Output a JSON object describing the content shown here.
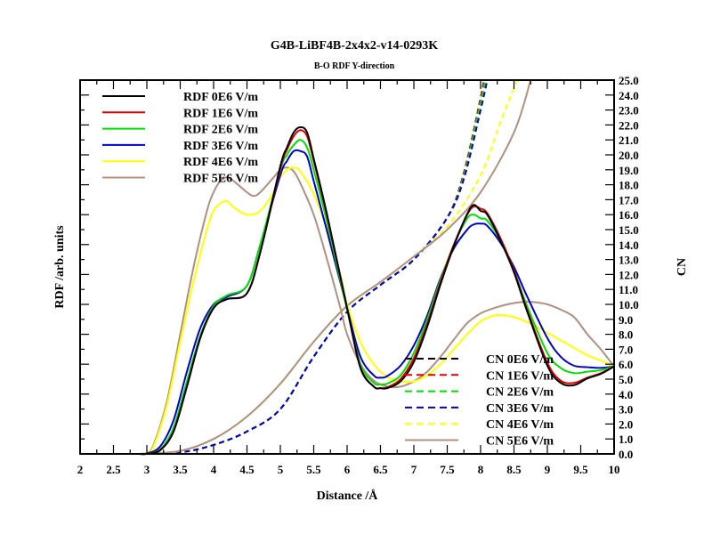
{
  "chart_data": {
    "type": "line",
    "title": "G4B-LiBF4B-2x4x2-v14-0293K",
    "subtitle": "B-O RDF Y-direction",
    "xlabel": "Distance /Å",
    "ylabel_left": "RDF /arb. units",
    "ylabel_right": "CN",
    "xlim": [
      2,
      10
    ],
    "ylim_right": [
      0,
      25
    ],
    "xticks": [
      2,
      2.5,
      3,
      3.5,
      4,
      4.5,
      5,
      5.5,
      6,
      6.5,
      7,
      7.5,
      8,
      8.5,
      9,
      9.5,
      10
    ],
    "yticks_right": [
      0.0,
      1.0,
      2.0,
      3.0,
      4.0,
      5.0,
      6.0,
      7.0,
      8.0,
      9.0,
      10.0,
      11.0,
      12.0,
      13.0,
      14.0,
      15.0,
      16.0,
      17.0,
      18.0,
      19.0,
      20.0,
      21.0,
      22.0,
      23.0,
      24.0,
      25.0
    ],
    "legend_rdf_placement": "top-left",
    "legend_cn_placement": "bottom-right",
    "rdf_series": [
      {
        "name": "RDF 0E6 V/m",
        "color": "#000000",
        "x": [
          2.9,
          3.0,
          3.2,
          3.4,
          3.6,
          3.8,
          4.0,
          4.2,
          4.5,
          4.7,
          5.0,
          5.1,
          5.2,
          5.3,
          5.4,
          5.5,
          5.7,
          6.0,
          6.2,
          6.4,
          6.5,
          6.6,
          6.8,
          7.0,
          7.2,
          7.4,
          7.6,
          7.8,
          7.9,
          8.0,
          8.1,
          8.3,
          8.5,
          8.7,
          9.0,
          9.2,
          9.4,
          9.6,
          9.8,
          10.0
        ],
        "y": [
          0.0,
          0.002,
          0.05,
          0.3,
          0.9,
          1.55,
          1.95,
          2.07,
          2.15,
          2.7,
          3.85,
          4.1,
          4.3,
          4.37,
          4.3,
          3.95,
          3.2,
          1.95,
          1.15,
          0.9,
          0.88,
          0.88,
          0.97,
          1.23,
          1.7,
          2.27,
          2.78,
          3.21,
          3.33,
          3.25,
          3.2,
          2.85,
          2.43,
          1.9,
          1.18,
          0.95,
          0.92,
          1.01,
          1.07,
          1.17
        ]
      },
      {
        "name": "RDF 1E6 V/m",
        "color": "#e00000",
        "x": [
          2.9,
          3.0,
          3.2,
          3.4,
          3.6,
          3.8,
          4.0,
          4.2,
          4.5,
          4.7,
          5.0,
          5.1,
          5.2,
          5.3,
          5.4,
          5.5,
          5.7,
          6.0,
          6.2,
          6.4,
          6.5,
          6.6,
          6.8,
          7.0,
          7.2,
          7.4,
          7.6,
          7.8,
          7.9,
          8.0,
          8.1,
          8.3,
          8.5,
          8.7,
          9.0,
          9.2,
          9.4,
          9.6,
          9.8,
          10.0
        ],
        "y": [
          0.0,
          0.002,
          0.05,
          0.3,
          0.9,
          1.55,
          1.95,
          2.07,
          2.15,
          2.7,
          3.82,
          4.07,
          4.25,
          4.33,
          4.25,
          3.92,
          3.18,
          1.95,
          1.16,
          0.9,
          0.88,
          0.89,
          1.0,
          1.28,
          1.74,
          2.3,
          2.8,
          3.2,
          3.31,
          3.28,
          3.22,
          2.88,
          2.45,
          1.92,
          1.22,
          0.98,
          0.95,
          1.02,
          1.08,
          1.17
        ]
      },
      {
        "name": "RDF 2E6 V/m",
        "color": "#00e000",
        "x": [
          2.9,
          3.0,
          3.2,
          3.4,
          3.6,
          3.8,
          4.0,
          4.2,
          4.5,
          4.7,
          5.0,
          5.1,
          5.2,
          5.3,
          5.4,
          5.5,
          5.7,
          6.0,
          6.2,
          6.4,
          6.5,
          6.6,
          6.8,
          7.0,
          7.2,
          7.4,
          7.6,
          7.8,
          7.9,
          8.0,
          8.1,
          8.3,
          8.5,
          8.7,
          9.0,
          9.2,
          9.4,
          9.6,
          9.8,
          10.0
        ],
        "y": [
          0.0,
          0.003,
          0.06,
          0.35,
          0.97,
          1.58,
          1.98,
          2.12,
          2.25,
          2.8,
          3.8,
          4.0,
          4.13,
          4.2,
          4.1,
          3.8,
          3.1,
          1.93,
          1.2,
          0.95,
          0.93,
          0.94,
          1.05,
          1.35,
          1.8,
          2.33,
          2.8,
          3.15,
          3.2,
          3.15,
          3.12,
          2.85,
          2.45,
          1.97,
          1.35,
          1.15,
          1.08,
          1.1,
          1.12,
          1.17
        ]
      },
      {
        "name": "RDF 3E6 V/m",
        "color": "#0000cc",
        "x": [
          2.9,
          3.0,
          3.2,
          3.4,
          3.6,
          3.8,
          4.0,
          4.2,
          4.5,
          4.7,
          5.0,
          5.1,
          5.2,
          5.3,
          5.4,
          5.5,
          5.7,
          6.0,
          6.2,
          6.4,
          6.5,
          6.6,
          6.8,
          7.0,
          7.2,
          7.4,
          7.6,
          7.8,
          7.9,
          8.0,
          8.1,
          8.3,
          8.5,
          8.7,
          9.0,
          9.2,
          9.4,
          9.6,
          9.8,
          10.0
        ],
        "y": [
          0.0,
          0.005,
          0.1,
          0.45,
          1.1,
          1.68,
          2.0,
          2.1,
          2.25,
          2.8,
          3.73,
          3.92,
          4.05,
          4.05,
          3.98,
          3.65,
          2.98,
          1.95,
          1.3,
          1.05,
          1.02,
          1.04,
          1.18,
          1.45,
          1.85,
          2.35,
          2.75,
          3.0,
          3.07,
          3.08,
          3.05,
          2.82,
          2.5,
          2.1,
          1.55,
          1.3,
          1.18,
          1.16,
          1.15,
          1.17
        ]
      },
      {
        "name": "RDF 4E6 V/m",
        "color": "#ffff00",
        "x": [
          2.9,
          3.0,
          3.1,
          3.3,
          3.5,
          3.7,
          3.9,
          4.0,
          4.1,
          4.2,
          4.3,
          4.5,
          4.7,
          4.9,
          5.0,
          5.1,
          5.2,
          5.3,
          5.5,
          5.7,
          5.9,
          6.0,
          6.2,
          6.4,
          6.6,
          6.8,
          7.0,
          7.2,
          7.4,
          7.6,
          7.8,
          8.0,
          8.2,
          8.4,
          8.6,
          8.8,
          9.0,
          9.2,
          9.4,
          9.6,
          9.8,
          10.0
        ],
        "y": [
          0.0,
          0.01,
          0.1,
          0.65,
          1.5,
          2.3,
          3.0,
          3.25,
          3.35,
          3.38,
          3.3,
          3.2,
          3.25,
          3.5,
          3.7,
          3.8,
          3.83,
          3.78,
          3.48,
          3.0,
          2.4,
          2.0,
          1.5,
          1.2,
          1.03,
          0.97,
          0.97,
          1.05,
          1.2,
          1.4,
          1.6,
          1.77,
          1.85,
          1.85,
          1.8,
          1.72,
          1.62,
          1.52,
          1.42,
          1.32,
          1.25,
          1.17
        ]
      },
      {
        "name": "RDF 5E6 V/m",
        "color": "#b09080",
        "x": [
          2.9,
          3.0,
          3.1,
          3.3,
          3.5,
          3.7,
          3.9,
          4.0,
          4.1,
          4.2,
          4.3,
          4.5,
          4.6,
          4.7,
          4.9,
          5.0,
          5.1,
          5.2,
          5.3,
          5.5,
          5.7,
          5.9,
          6.0,
          6.2,
          6.4,
          6.6,
          6.8,
          7.0,
          7.2,
          7.4,
          7.6,
          7.8,
          8.0,
          8.2,
          8.4,
          8.6,
          8.8,
          9.0,
          9.2,
          9.4,
          9.6,
          9.8,
          10.0
        ],
        "y": [
          0.0,
          0.01,
          0.12,
          0.7,
          1.6,
          2.5,
          3.25,
          3.5,
          3.65,
          3.7,
          3.65,
          3.5,
          3.45,
          3.5,
          3.7,
          3.8,
          3.83,
          3.78,
          3.62,
          3.2,
          2.6,
          1.95,
          1.6,
          1.2,
          0.98,
          0.9,
          0.9,
          0.97,
          1.1,
          1.3,
          1.53,
          1.75,
          1.88,
          1.95,
          2.0,
          2.03,
          2.03,
          2.0,
          1.93,
          1.83,
          1.6,
          1.4,
          1.17
        ]
      }
    ],
    "cn_series": [
      {
        "name": "CN 0E6 V/m",
        "color": "#000000",
        "dashed": true,
        "x": [
          2.9,
          3.5,
          4.0,
          4.5,
          5.0,
          5.5,
          6.0,
          6.5,
          7.0,
          7.5,
          7.75,
          8.0,
          8.05
        ],
        "y": [
          0.0,
          0.1,
          0.6,
          1.5,
          3.0,
          6.5,
          9.5,
          11.3,
          13.0,
          15.8,
          18.8,
          23.8,
          25.0
        ]
      },
      {
        "name": "CN 1E6 V/m",
        "color": "#e00000",
        "dashed": true,
        "x": [
          2.9,
          3.5,
          4.0,
          4.5,
          5.0,
          5.5,
          6.0,
          6.5,
          7.0,
          7.5,
          7.75,
          8.0,
          8.05
        ],
        "y": [
          0.0,
          0.1,
          0.6,
          1.5,
          3.0,
          6.5,
          9.5,
          11.3,
          13.0,
          15.8,
          18.8,
          23.8,
          25.0
        ]
      },
      {
        "name": "CN 2E6 V/m",
        "color": "#00e000",
        "dashed": true,
        "x": [
          2.9,
          3.5,
          4.0,
          4.5,
          5.0,
          5.5,
          6.0,
          6.5,
          7.0,
          7.5,
          7.75,
          8.0,
          8.07
        ],
        "y": [
          0.0,
          0.1,
          0.6,
          1.5,
          3.0,
          6.5,
          9.5,
          11.3,
          13.0,
          15.8,
          18.6,
          23.5,
          25.0
        ]
      },
      {
        "name": "CN 3E6 V/m",
        "color": "#0000cc",
        "dashed": true,
        "x": [
          2.9,
          3.5,
          4.0,
          4.5,
          5.0,
          5.5,
          6.0,
          6.5,
          7.0,
          7.5,
          7.75,
          8.0,
          8.1
        ],
        "y": [
          0.0,
          0.1,
          0.6,
          1.5,
          3.0,
          6.5,
          9.5,
          11.3,
          13.0,
          15.8,
          18.4,
          23.0,
          25.0
        ]
      },
      {
        "name": "CN 4E6 V/m",
        "color": "#ffff00",
        "dashed": true,
        "x": [
          2.9,
          3.5,
          4.0,
          4.5,
          5.0,
          5.5,
          6.0,
          6.5,
          7.0,
          7.5,
          8.0,
          8.3,
          8.55
        ],
        "y": [
          0.0,
          0.2,
          1.0,
          2.5,
          4.7,
          7.5,
          9.9,
          11.5,
          13.2,
          15.2,
          18.6,
          22.2,
          25.0
        ]
      },
      {
        "name": "CN 5E6 V/m",
        "color": "#b09080",
        "dashed": false,
        "x": [
          2.9,
          3.5,
          4.0,
          4.5,
          5.0,
          5.5,
          6.0,
          6.5,
          7.0,
          7.5,
          8.0,
          8.5,
          8.75
        ],
        "y": [
          0.0,
          0.2,
          1.0,
          2.5,
          4.7,
          7.5,
          9.9,
          11.5,
          13.2,
          15.0,
          17.5,
          21.5,
          25.0
        ]
      }
    ]
  }
}
